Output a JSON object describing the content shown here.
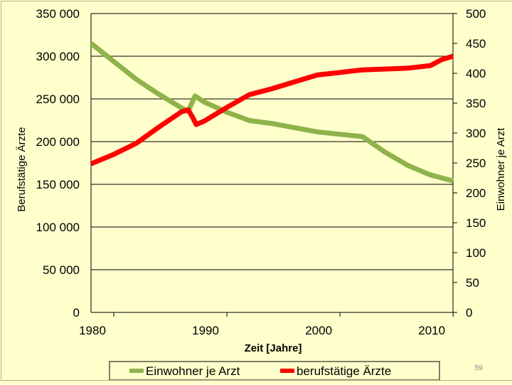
{
  "slide_number": "59",
  "chart_data": {
    "type": "line",
    "xlabel": "Zeit [Jahre]",
    "ylabel_left": "Berufstätige Ärzte",
    "ylabel_right": "Einwohner je Arzt",
    "x_ticks": [
      "1980",
      "1990",
      "2000",
      "2010"
    ],
    "y_left_ticks": [
      "0",
      "50 000",
      "100 000",
      "150 000",
      "200 000",
      "250 000",
      "300 000",
      "350 000"
    ],
    "y_right_ticks": [
      "0",
      "50",
      "100",
      "150",
      "200",
      "250",
      "300",
      "350",
      "400",
      "450",
      "500"
    ],
    "xlim": [
      1980,
      2012
    ],
    "ylim_left": [
      0,
      350000
    ],
    "ylim_right": [
      0,
      500
    ],
    "grid": "horizontal",
    "legend_position": "bottom",
    "series": [
      {
        "name": "Einwohner je Arzt",
        "axis": "right",
        "color": "#8fb34a",
        "x": [
          1980,
          1982,
          1984,
          1986,
          1988,
          1988.6,
          1989.2,
          1990,
          1992,
          1994,
          1996,
          1998,
          2000,
          2002,
          2004,
          2006,
          2008,
          2010,
          2012
        ],
        "y": [
          450,
          420,
          390,
          365,
          342,
          337,
          362,
          352,
          335,
          321,
          316,
          309,
          302,
          298,
          294,
          268,
          246,
          230,
          220
        ]
      },
      {
        "name": "berufstätige Ärzte",
        "axis": "left",
        "color": "#ff0000",
        "x": [
          1980,
          1982,
          1984,
          1986,
          1988,
          1988.6,
          1989,
          1989.3,
          1990,
          1992,
          1994,
          1996,
          1998,
          2000,
          2002,
          2004,
          2006,
          2008,
          2010,
          2011,
          2012
        ],
        "y": [
          174000,
          185000,
          198000,
          217000,
          235000,
          237000,
          228000,
          220000,
          224000,
          240000,
          255000,
          262000,
          270000,
          278000,
          281000,
          284000,
          285000,
          286000,
          289000,
          296000,
          300000
        ]
      }
    ]
  }
}
